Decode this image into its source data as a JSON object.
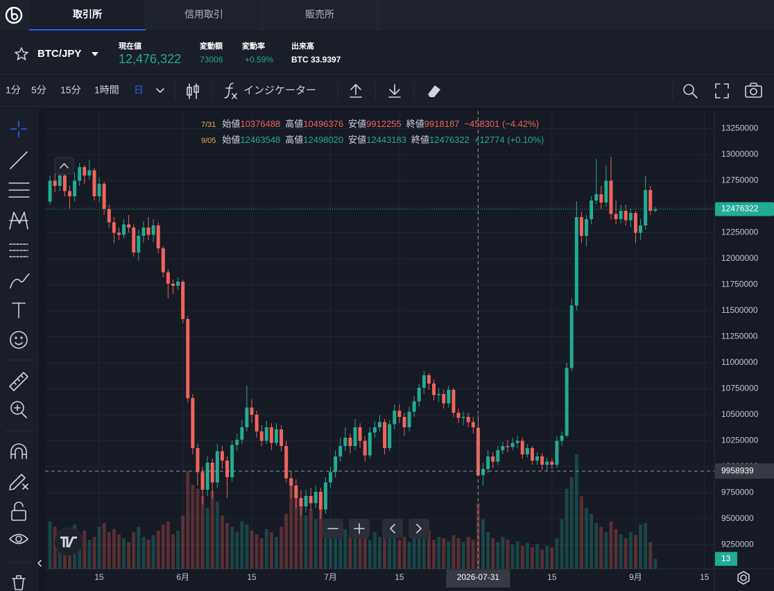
{
  "tabs": [
    "取引所",
    "信用取引",
    "販売所"
  ],
  "ticker": {
    "symbol": "BTC/JPY",
    "stats": [
      {
        "label": "現在値",
        "value": "12,476,322"
      },
      {
        "label": "変動額",
        "value": 73006
      },
      {
        "label": "変動率",
        "value": "+0.59%"
      },
      {
        "label": "出来高",
        "value": "BTC 33.9397"
      }
    ]
  },
  "intervals": [
    "1分",
    "5分",
    "15分",
    "1時間",
    "日"
  ],
  "indicator_button": "インジケーター",
  "chart_data": {
    "type": "candlestick",
    "up_color": "#22ab94",
    "down_color": "#f0645a",
    "grid": true,
    "legend": {
      "labels": [
        "始値",
        "高値",
        "安値",
        "終値"
      ],
      "rows": [
        {
          "date": "7/31",
          "change": "−458301 (−4.42%)"
        },
        {
          "date": "9/05",
          "change": "+12774 (+0.10%)"
        }
      ]
    },
    "crosshair": {
      "x": "2026-07-31",
      "y": 9958939
    },
    "xlim": [
      "2026-05-04",
      "2026-09-17"
    ],
    "xticks": [
      {
        "value": "2026-05-15",
        "label": "15"
      },
      {
        "value": "2026-06-01",
        "label": "6月"
      },
      {
        "value": "2026-06-15",
        "label": "15"
      },
      {
        "value": "2026-07-01",
        "label": "7月"
      },
      {
        "value": "2026-07-15",
        "label": "15"
      },
      {
        "value": "2026-08-15",
        "label": "15"
      },
      {
        "value": "2026-09-01",
        "label": "9月"
      },
      {
        "value": "2026-09-15",
        "label": "15"
      }
    ],
    "ylim": [
      9020000,
      13420000
    ],
    "yticks": [
      13250000,
      13000000,
      12750000,
      12500000,
      12250000,
      12000000,
      11750000,
      11500000,
      11250000,
      11000000,
      10750000,
      10500000,
      10250000,
      10000000,
      9750000,
      9500000,
      9250000
    ],
    "volume_ylim": [
      0,
      150
    ],
    "x": [
      "2026-05-05",
      "2026-05-06",
      "2026-05-07",
      "2026-05-08",
      "2026-05-09",
      "2026-05-10",
      "2026-05-11",
      "2026-05-12",
      "2026-05-13",
      "2026-05-14",
      "2026-05-15",
      "2026-05-16",
      "2026-05-17",
      "2026-05-18",
      "2026-05-19",
      "2026-05-20",
      "2026-05-21",
      "2026-05-22",
      "2026-05-23",
      "2026-05-24",
      "2026-05-25",
      "2026-05-26",
      "2026-05-27",
      "2026-05-28",
      "2026-05-29",
      "2026-05-30",
      "2026-05-31",
      "2026-06-01",
      "2026-06-02",
      "2026-06-03",
      "2026-06-04",
      "2026-06-05",
      "2026-06-06",
      "2026-06-07",
      "2026-06-08",
      "2026-06-09",
      "2026-06-10",
      "2026-06-11",
      "2026-06-12",
      "2026-06-13",
      "2026-06-14",
      "2026-06-15",
      "2026-06-16",
      "2026-06-17",
      "2026-06-18",
      "2026-06-19",
      "2026-06-20",
      "2026-06-21",
      "2026-06-22",
      "2026-06-23",
      "2026-06-24",
      "2026-06-25",
      "2026-06-26",
      "2026-06-27",
      "2026-06-28",
      "2026-06-29",
      "2026-06-30",
      "2026-07-01",
      "2026-07-02",
      "2026-07-03",
      "2026-07-04",
      "2026-07-05",
      "2026-07-06",
      "2026-07-07",
      "2026-07-08",
      "2026-07-09",
      "2026-07-10",
      "2026-07-11",
      "2026-07-12",
      "2026-07-13",
      "2026-07-14",
      "2026-07-15",
      "2026-07-16",
      "2026-07-17",
      "2026-07-18",
      "2026-07-19",
      "2026-07-20",
      "2026-07-21",
      "2026-07-22",
      "2026-07-23",
      "2026-07-24",
      "2026-07-25",
      "2026-07-26",
      "2026-07-27",
      "2026-07-28",
      "2026-07-29",
      "2026-07-30",
      "2026-07-31",
      "2026-08-01",
      "2026-08-02",
      "2026-08-03",
      "2026-08-04",
      "2026-08-05",
      "2026-08-06",
      "2026-08-07",
      "2026-08-08",
      "2026-08-09",
      "2026-08-10",
      "2026-08-11",
      "2026-08-12",
      "2026-08-13",
      "2026-08-14",
      "2026-08-15",
      "2026-08-16",
      "2026-08-17",
      "2026-08-18",
      "2026-08-19",
      "2026-08-20",
      "2026-08-21",
      "2026-08-22",
      "2026-08-23",
      "2026-08-24",
      "2026-08-25",
      "2026-08-26",
      "2026-08-27",
      "2026-08-28",
      "2026-08-29",
      "2026-08-30",
      "2026-08-31",
      "2026-09-01",
      "2026-09-02",
      "2026-09-03",
      "2026-09-04",
      "2026-09-05"
    ],
    "open": [
      12550000,
      12750000,
      12700000,
      12800000,
      12650000,
      12600000,
      12750000,
      12880000,
      12800000,
      12850000,
      12600000,
      12720000,
      12480000,
      12350000,
      12250000,
      12230000,
      12330000,
      12300000,
      12060000,
      12220000,
      12300000,
      12230000,
      12320000,
      12100000,
      11870000,
      11760000,
      11740000,
      11780000,
      11420000,
      10660000,
      10180000,
      9950000,
      9780000,
      10040000,
      9850000,
      10150000,
      10060000,
      9900000,
      10210000,
      10260000,
      10380000,
      10570000,
      10500000,
      10340000,
      10250000,
      10380000,
      10230000,
      10360000,
      10200000,
      9890000,
      9820000,
      9700000,
      9620000,
      9720000,
      9650000,
      9760000,
      9590000,
      9850000,
      9950000,
      10100000,
      10200000,
      10280000,
      10200000,
      10380000,
      10250000,
      10110000,
      10330000,
      10380000,
      10430000,
      10180000,
      10410000,
      10540000,
      10480000,
      10380000,
      10530000,
      10630000,
      10760000,
      10880000,
      10800000,
      10690000,
      10700000,
      10610000,
      10740000,
      10520000,
      10470000,
      10480000,
      10430000,
      10376488,
      9920000,
      9980000,
      10100000,
      10050000,
      10160000,
      10200000,
      10190000,
      10230000,
      10250000,
      10120000,
      10180000,
      10060000,
      10100000,
      10020000,
      10050000,
      10020000,
      10250000,
      10300000,
      10950000,
      11550000,
      12400000,
      12220000,
      12380000,
      12560000,
      12620000,
      12540000,
      12750000,
      12430000,
      12380000,
      12460000,
      12370000,
      12440000,
      12250000,
      12320000,
      12660000,
      12463548
    ],
    "high": [
      12800000,
      12820000,
      12850000,
      12900000,
      12700000,
      12830000,
      12920000,
      12900000,
      12950000,
      12870000,
      12780000,
      12740000,
      12520000,
      12400000,
      12300000,
      12380000,
      12420000,
      12330000,
      12280000,
      12360000,
      12400000,
      12380000,
      12350000,
      12120000,
      11900000,
      11800000,
      11820000,
      11800000,
      11450000,
      10700000,
      10220000,
      10000000,
      10100000,
      10080000,
      10220000,
      10200000,
      10100000,
      10250000,
      10320000,
      10450000,
      10780000,
      10650000,
      10540000,
      10400000,
      10440000,
      10420000,
      10420000,
      10400000,
      10250000,
      9950000,
      9880000,
      9780000,
      9780000,
      9800000,
      9820000,
      9800000,
      9900000,
      10000000,
      10160000,
      10280000,
      10380000,
      10320000,
      10460000,
      10420000,
      10300000,
      10380000,
      10440000,
      10500000,
      10460000,
      10450000,
      10600000,
      10600000,
      10520000,
      10580000,
      10680000,
      10800000,
      10920000,
      10900000,
      10840000,
      10760000,
      10740000,
      10780000,
      10760000,
      10560000,
      10530000,
      10520000,
      10480000,
      10496376,
      10040000,
      10160000,
      10140000,
      10200000,
      10240000,
      10260000,
      10280000,
      10300000,
      10280000,
      10220000,
      10200000,
      10140000,
      10130000,
      10090000,
      10080000,
      10290000,
      10340000,
      11000000,
      11620000,
      12550000,
      12450000,
      12420000,
      12600000,
      12960000,
      12700000,
      12900000,
      12980000,
      12560000,
      12520000,
      12520000,
      12480000,
      12460000,
      12380000,
      12800000,
      12700000,
      12498020
    ],
    "low": [
      12520000,
      12640000,
      12650000,
      12600000,
      12480000,
      12550000,
      12700000,
      12720000,
      12760000,
      12560000,
      12540000,
      12420000,
      12300000,
      12150000,
      12180000,
      12200000,
      12250000,
      12020000,
      11980000,
      12150000,
      12180000,
      12160000,
      12050000,
      11820000,
      11620000,
      11660000,
      11700000,
      11380000,
      10620000,
      10120000,
      9820000,
      9640000,
      9720000,
      9700000,
      9800000,
      9980000,
      9700000,
      9860000,
      10150000,
      10220000,
      10340000,
      10420000,
      10280000,
      10200000,
      10220000,
      10160000,
      10200000,
      10150000,
      9850000,
      9700000,
      9600000,
      9530000,
      9560000,
      9580000,
      9600000,
      9500000,
      9550000,
      9800000,
      9900000,
      10050000,
      10150000,
      10130000,
      10160000,
      10180000,
      10050000,
      10080000,
      10280000,
      10340000,
      10120000,
      10150000,
      10360000,
      10420000,
      10300000,
      10340000,
      10480000,
      10580000,
      10700000,
      10740000,
      10640000,
      10620000,
      10560000,
      10570000,
      10480000,
      10420000,
      10400000,
      10380000,
      10320000,
      9912255,
      9820000,
      9940000,
      9990000,
      10020000,
      10120000,
      10140000,
      10160000,
      10180000,
      10080000,
      10090000,
      10020000,
      10020000,
      9970000,
      9960000,
      9980000,
      9990000,
      10200000,
      10280000,
      10920000,
      11500000,
      12150000,
      12120000,
      12330000,
      12520000,
      12480000,
      12500000,
      12380000,
      12330000,
      12340000,
      12320000,
      12300000,
      12150000,
      12180000,
      12280000,
      12420000,
      12443183
    ],
    "close": [
      12750000,
      12700000,
      12800000,
      12650000,
      12600000,
      12750000,
      12880000,
      12800000,
      12850000,
      12600000,
      12720000,
      12480000,
      12350000,
      12250000,
      12230000,
      12330000,
      12300000,
      12060000,
      12220000,
      12300000,
      12230000,
      12320000,
      12100000,
      11870000,
      11760000,
      11740000,
      11780000,
      11420000,
      10660000,
      10180000,
      9950000,
      9780000,
      10040000,
      9850000,
      10150000,
      10060000,
      9900000,
      10210000,
      10260000,
      10380000,
      10570000,
      10500000,
      10340000,
      10250000,
      10380000,
      10230000,
      10360000,
      10200000,
      9890000,
      9820000,
      9700000,
      9620000,
      9720000,
      9650000,
      9760000,
      9590000,
      9850000,
      9950000,
      10100000,
      10200000,
      10280000,
      10200000,
      10380000,
      10250000,
      10110000,
      10330000,
      10380000,
      10430000,
      10180000,
      10410000,
      10540000,
      10480000,
      10380000,
      10530000,
      10630000,
      10760000,
      10880000,
      10800000,
      10690000,
      10700000,
      10610000,
      10740000,
      10520000,
      10470000,
      10480000,
      10430000,
      10380000,
      9918187,
      9980000,
      10100000,
      10050000,
      10160000,
      10200000,
      10190000,
      10230000,
      10250000,
      10120000,
      10180000,
      10060000,
      10100000,
      10020000,
      10050000,
      10020000,
      10250000,
      10300000,
      10950000,
      11550000,
      12400000,
      12220000,
      12380000,
      12560000,
      12620000,
      12540000,
      12750000,
      12430000,
      12380000,
      12460000,
      12370000,
      12440000,
      12250000,
      12320000,
      12660000,
      12460000,
      12476322
    ],
    "volume": [
      62,
      55,
      48,
      40,
      52,
      58,
      45,
      50,
      38,
      42,
      55,
      60,
      48,
      52,
      45,
      40,
      35,
      48,
      55,
      42,
      38,
      44,
      50,
      58,
      62,
      45,
      50,
      70,
      128,
      110,
      105,
      95,
      80,
      102,
      88,
      70,
      60,
      55,
      48,
      62,
      58,
      50,
      45,
      40,
      52,
      48,
      42,
      55,
      72,
      118,
      95,
      85,
      70,
      78,
      65,
      90,
      60,
      55,
      62,
      48,
      52,
      45,
      40,
      50,
      44,
      38,
      48,
      42,
      55,
      40,
      45,
      38,
      42,
      35,
      48,
      52,
      45,
      50,
      38,
      42,
      40,
      36,
      44,
      40,
      35,
      42,
      38,
      86,
      65,
      48,
      40,
      35,
      42,
      38,
      32,
      36,
      30,
      34,
      28,
      32,
      25,
      30,
      28,
      40,
      65,
      105,
      120,
      150,
      95,
      80,
      72,
      60,
      55,
      48,
      62,
      52,
      45,
      40,
      48,
      44,
      58,
      60,
      35,
      13
    ]
  }
}
